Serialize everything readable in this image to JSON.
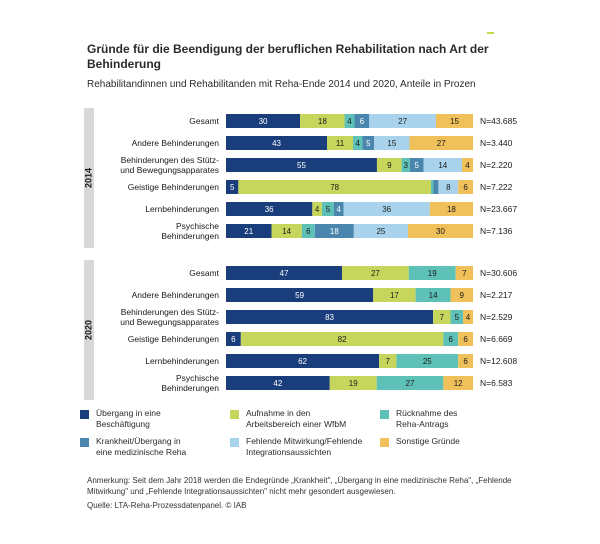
{
  "title": "Gründe für die Beendigung der beruflichen Rehabilitation nach Art der Behinderung",
  "subtitle": "Rehabilitandinnen und Rehabilitanden mit Reha-Ende 2014 und 2020, Anteile in Prozen",
  "colors": {
    "uebergang": "#1a3d7c",
    "aufnahme": "#c6d65c",
    "ruecknahme": "#5ec1b8",
    "krankheit": "#4a86ae",
    "fehlende": "#a9d3ec",
    "sonstige": "#f0c05a",
    "year_band": "#d8d8d8"
  },
  "chart_data": {
    "type": "bar",
    "orientation": "horizontal",
    "stacked": true,
    "unit": "Prozent",
    "series_names": [
      "Übergang in eine Beschäftigung",
      "Aufnahme in den Arbeitsbereich einer WfbM",
      "Rücknahme des Reha-Antrags",
      "Krankheit/Übergang in eine medizinische Reha",
      "Fehlende Mitwirkung/Fehlende Integrationsaussichten",
      "Sonstige Gründe"
    ],
    "groups": [
      {
        "year": "2014",
        "rows": [
          {
            "label": [
              "Gesamt"
            ],
            "values": [
              30,
              18,
              4,
              6,
              27,
              15
            ],
            "n": "N=43.685"
          },
          {
            "label": [
              "Andere Behinderungen"
            ],
            "values": [
              43,
              11,
              4,
              5,
              15,
              27
            ],
            "n": "N=3.440"
          },
          {
            "label": [
              "Behinderungen des Stütz-",
              "und Bewegungsapparates"
            ],
            "values": [
              55,
              9,
              3,
              5,
              14,
              4
            ],
            "n": "N=2.220"
          },
          {
            "label": [
              "Geistige Behinderungen"
            ],
            "values": [
              5,
              78,
              1,
              2,
              8,
              6
            ],
            "n": "N=7.222"
          },
          {
            "label": [
              "Lernbehinderungen"
            ],
            "values": [
              36,
              4,
              5,
              4,
              36,
              18
            ],
            "n": "N=23.667"
          },
          {
            "label": [
              "Psychische",
              "Behinderungen"
            ],
            "values": [
              21,
              14,
              6,
              18,
              25,
              30
            ],
            "n": "N=7.136"
          }
        ]
      },
      {
        "year": "2020",
        "rows": [
          {
            "label": [
              "Gesamt"
            ],
            "values": [
              47,
              27,
              19,
              7
            ],
            "series_idx": [
              0,
              1,
              2,
              5
            ],
            "n": "N=30.606"
          },
          {
            "label": [
              "Andere Behinderungen"
            ],
            "values": [
              59,
              17,
              14,
              9
            ],
            "series_idx": [
              0,
              1,
              2,
              5
            ],
            "n": "N=2.217"
          },
          {
            "label": [
              "Behinderungen des Stütz-",
              "und Bewegungsapparates"
            ],
            "values": [
              83,
              7,
              5,
              4
            ],
            "series_idx": [
              0,
              1,
              2,
              5
            ],
            "n": "N=2.529"
          },
          {
            "label": [
              "Geistige Behinderungen"
            ],
            "values": [
              6,
              82,
              6,
              6
            ],
            "series_idx": [
              0,
              1,
              2,
              5
            ],
            "n": "N=6.669"
          },
          {
            "label": [
              "Lernbehinderungen"
            ],
            "values": [
              62,
              7,
              25,
              6
            ],
            "series_idx": [
              0,
              1,
              2,
              5
            ],
            "n": "N=12.608"
          },
          {
            "label": [
              "Psychische",
              "Behinderungen"
            ],
            "values": [
              42,
              19,
              27,
              12
            ],
            "series_idx": [
              0,
              1,
              2,
              5
            ],
            "n": "N=6.583"
          }
        ]
      }
    ],
    "hidden_labels": [
      "1"
    ]
  },
  "legend": [
    {
      "key": "uebergang",
      "label": [
        "Übergang in eine",
        "Beschäftigung"
      ]
    },
    {
      "key": "aufnahme",
      "label": [
        "Aufnahme in den",
        "Arbeitsbereich einer WfbM"
      ]
    },
    {
      "key": "ruecknahme",
      "label": [
        "Rücknahme des",
        "Reha-Antrags"
      ]
    },
    {
      "key": "krankheit",
      "label": [
        "Krankheit/Übergang in",
        "eine medizinische Reha"
      ]
    },
    {
      "key": "fehlende",
      "label": [
        "Fehlende Mitwirkung/Fehlende",
        "Integrationsaussichten"
      ]
    },
    {
      "key": "sonstige",
      "label": [
        "Sonstige Gründe"
      ]
    }
  ],
  "note": "Anmerkung: Seit dem Jahr 2018 werden die Endegründe „Krankheit\", „Übergang in eine medizinische Reha\", „Fehlende Mitwirkung\" und „Fehlende Integrationsaussichten\" nicht mehr gesondert ausgewiesen.",
  "source": "Quelle: LTA-Reha-Prozessdatenpanel. © IAB"
}
